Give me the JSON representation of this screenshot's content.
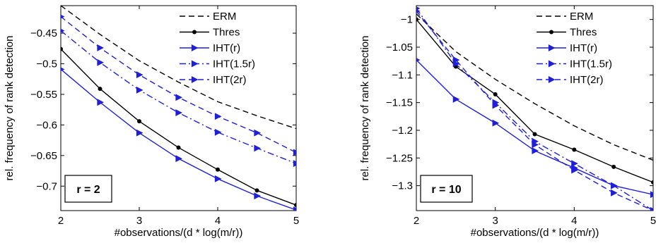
{
  "chart_data": [
    {
      "type": "line",
      "xlabel": "#observations/(d * log(m/r))",
      "ylabel": "rel. frequency of rank detection",
      "xlim": [
        2,
        5
      ],
      "ylim": [
        -0.74,
        -0.405
      ],
      "xticks": [
        2,
        3,
        4,
        5
      ],
      "yticks": [
        -0.45,
        -0.5,
        -0.55,
        -0.6,
        -0.65,
        -0.7
      ],
      "ytick_labels": [
        "−0.45",
        "−0.5",
        "−0.55",
        "−0.6",
        "−0.65",
        "−0.7"
      ],
      "annotation": "r = 2",
      "legend_position": "top-right",
      "grid": false,
      "x": [
        2,
        2.5,
        3,
        3.5,
        4,
        4.5,
        5
      ],
      "series": [
        {
          "name": "ERM",
          "color": "#000000",
          "dash": "dashed",
          "marker": "none",
          "values": [
            -0.405,
            -0.452,
            -0.495,
            -0.53,
            -0.562,
            -0.585,
            -0.606
          ]
        },
        {
          "name": "Thres",
          "color": "#000000",
          "dash": "solid",
          "marker": "dot",
          "values": [
            -0.476,
            -0.541,
            -0.594,
            -0.637,
            -0.673,
            -0.707,
            -0.731
          ]
        },
        {
          "name": "IHT(r)",
          "color": "#1f1fd8",
          "dash": "solid",
          "marker": "triangle-right",
          "values": [
            -0.509,
            -0.563,
            -0.613,
            -0.655,
            -0.688,
            -0.716,
            -0.739
          ]
        },
        {
          "name": "IHT(1.5r)",
          "color": "#1f1fd8",
          "dash": "dashdot",
          "marker": "triangle-right",
          "values": [
            -0.446,
            -0.498,
            -0.543,
            -0.58,
            -0.612,
            -0.638,
            -0.663
          ]
        },
        {
          "name": "IHT(2r)",
          "color": "#1f1fd8",
          "dash": "dashed",
          "marker": "triangle-right",
          "values": [
            -0.423,
            -0.474,
            -0.518,
            -0.555,
            -0.586,
            -0.613,
            -0.645
          ]
        }
      ]
    },
    {
      "type": "line",
      "xlabel": "#observations/(d * log(m/r))",
      "ylabel": "rel. frequency of rank detection",
      "xlim": [
        2,
        5
      ],
      "ylim": [
        -1.345,
        -0.975
      ],
      "xticks": [
        2,
        3,
        4,
        5
      ],
      "yticks": [
        -1,
        -1.05,
        -1.1,
        -1.15,
        -1.2,
        -1.25,
        -1.3
      ],
      "ytick_labels": [
        "−1",
        "−1.05",
        "−1.1",
        "−1.15",
        "−1.2",
        "−1.25",
        "−1.3"
      ],
      "annotation": "r = 10",
      "legend_position": "top-right",
      "grid": false,
      "x": [
        2,
        2.5,
        3,
        3.5,
        4,
        4.5,
        5
      ],
      "series": [
        {
          "name": "ERM",
          "color": "#000000",
          "dash": "dashed",
          "marker": "none",
          "values": [
            -0.99,
            -1.058,
            -1.108,
            -1.152,
            -1.192,
            -1.226,
            -1.254
          ]
        },
        {
          "name": "Thres",
          "color": "#000000",
          "dash": "solid",
          "marker": "dot",
          "values": [
            -1.0,
            -1.085,
            -1.135,
            -1.207,
            -1.235,
            -1.266,
            -1.294
          ]
        },
        {
          "name": "IHT(r)",
          "color": "#1f1fd8",
          "dash": "solid",
          "marker": "triangle-right",
          "values": [
            -1.073,
            -1.144,
            -1.187,
            -1.237,
            -1.268,
            -1.3,
            -1.316
          ]
        },
        {
          "name": "IHT(1.5r)",
          "color": "#1f1fd8",
          "dash": "dashdot",
          "marker": "triangle-right",
          "values": [
            -0.98,
            -1.08,
            -1.15,
            -1.22,
            -1.26,
            -1.3,
            -1.345
          ]
        },
        {
          "name": "IHT(2r)",
          "color": "#1f1fd8",
          "dash": "dashed",
          "marker": "triangle-right",
          "values": [
            -0.985,
            -1.073,
            -1.155,
            -1.226,
            -1.272,
            -1.313,
            -1.345
          ]
        }
      ]
    }
  ]
}
